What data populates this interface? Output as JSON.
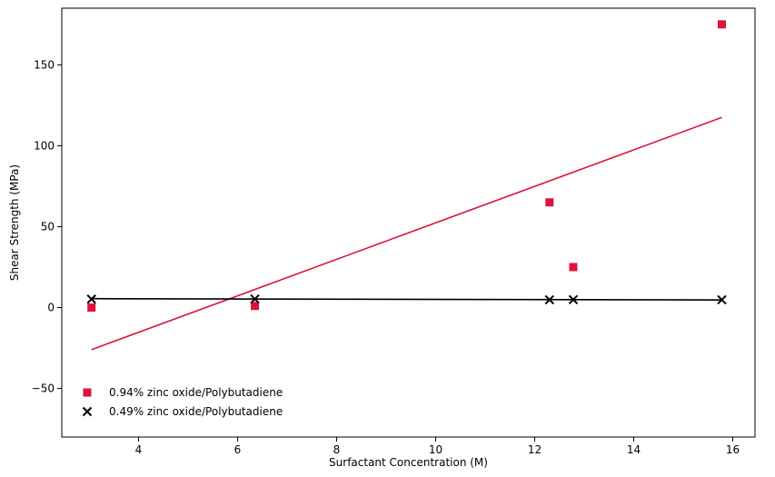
{
  "chart_data": {
    "type": "scatter",
    "title": "",
    "xlabel": "Surfactant Concentration (M)",
    "ylabel": "Shear Strength (MPa)",
    "xlim": [
      2.45,
      16.45
    ],
    "ylim": [
      -80,
      185
    ],
    "xticks": [
      4,
      6,
      8,
      10,
      12,
      14,
      16
    ],
    "yticks": [
      -50,
      0,
      50,
      100,
      150
    ],
    "xtick_labels": [
      "4",
      "6",
      "8",
      "10",
      "12",
      "14",
      "16"
    ],
    "ytick_labels": [
      "−50",
      "0",
      "50",
      "100",
      "150"
    ],
    "grid": false,
    "legend_position": "lower-left",
    "series": [
      {
        "name": "0.94% zinc oxide/Polybutadiene",
        "color": "#dc143c",
        "marker": "square",
        "x": [
          3.05,
          6.35,
          12.3,
          12.78,
          15.78
        ],
        "y": [
          0,
          1,
          65,
          25,
          175
        ],
        "fit": {
          "x": [
            3.05,
            15.78
          ],
          "y": [
            -26,
            117.5
          ]
        }
      },
      {
        "name": "0.49% zinc oxide/Polybutadiene",
        "color": "#000000",
        "marker": "x",
        "x": [
          3.05,
          6.35,
          12.3,
          12.78,
          15.78
        ],
        "y": [
          5.2,
          5.3,
          4.8,
          4.9,
          4.8
        ],
        "fit": {
          "x": [
            3.05,
            15.78
          ],
          "y": [
            5.5,
            4.7
          ]
        }
      }
    ]
  }
}
